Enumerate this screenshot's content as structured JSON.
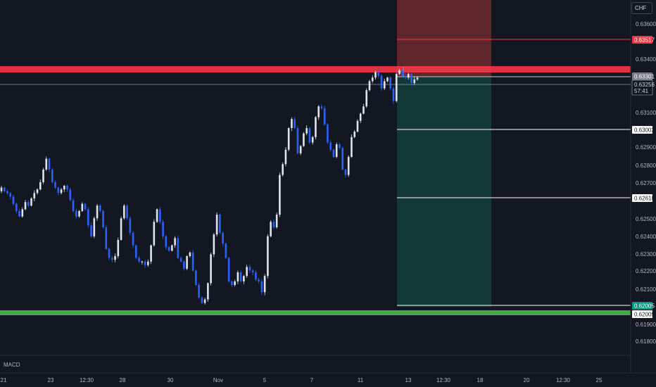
{
  "currency": "CHF",
  "indicator_label": "MACD",
  "price_labels": {
    "stop_loss": "0.63517",
    "entry": "0.63301",
    "current_price": "0.63256",
    "countdown": "57:41",
    "target_1": "0.63003",
    "target_2": "0.62618",
    "target_3": "0.62005",
    "support": "0.62005"
  },
  "colors": {
    "background": "#131722",
    "candle": "#2962ff",
    "candle_alt": "#e0e3eb",
    "resistance_zone": "#f23645",
    "support_zone": "#4caf50",
    "stop_area": "#6d2a2e",
    "target_area": "#133a3a",
    "stop_badge": "#f23645",
    "entry_badge": "#787b86",
    "target_badge": "#ffffff",
    "tp_badge": "#089981"
  },
  "chart_data": {
    "type": "candlestick",
    "y_ticks": [
      "0.63600",
      "0.63400",
      "0.63100",
      "0.62900",
      "0.62800",
      "0.62700",
      "0.62500",
      "0.62400",
      "0.62300",
      "0.62200",
      "0.62100",
      "0.61900",
      "0.61800"
    ],
    "x_ticks": [
      "21",
      "23",
      "12:30",
      "28",
      "30",
      "Nov",
      "5",
      "7",
      "11",
      "13",
      "12:30",
      "18",
      "20",
      "12:30",
      "25"
    ],
    "ylim": [
      0.6172,
      0.6369
    ],
    "resistance_zone": [
      0.63311,
      0.63354
    ],
    "support_zone": [
      0.61968,
      0.62
    ],
    "position": {
      "entry": 0.63301,
      "stop_loss": 0.63517,
      "targets": [
        0.63003,
        0.62618,
        0.62005
      ],
      "current_price": 0.63256
    },
    "close_series_approx": [
      0.6265,
      0.6263,
      0.6262,
      0.626,
      0.6256,
      0.6252,
      0.6249,
      0.6253,
      0.6257,
      0.6255,
      0.6259,
      0.6262,
      0.6264,
      0.6268,
      0.6275,
      0.6281,
      0.6275,
      0.6268,
      0.6265,
      0.6262,
      0.6264,
      0.6266,
      0.6264,
      0.6258,
      0.6252,
      0.6249,
      0.6252,
      0.6256,
      0.6253,
      0.6244,
      0.6238,
      0.6248,
      0.6255,
      0.6252,
      0.6243,
      0.6231,
      0.6226,
      0.6225,
      0.6227,
      0.6236,
      0.6248,
      0.6255,
      0.6248,
      0.624,
      0.6233,
      0.6226,
      0.6224,
      0.6224,
      0.6222,
      0.6224,
      0.6233,
      0.6246,
      0.6253,
      0.6246,
      0.6238,
      0.6232,
      0.623,
      0.6233,
      0.6237,
      0.6226,
      0.6224,
      0.622,
      0.6227,
      0.6229,
      0.6219,
      0.6211,
      0.6204,
      0.6201,
      0.6203,
      0.6212,
      0.6228,
      0.6239,
      0.625,
      0.624,
      0.6234,
      0.6226,
      0.6213,
      0.6211,
      0.6213,
      0.6218,
      0.6213,
      0.6216,
      0.6221,
      0.6219,
      0.6218,
      0.6214,
      0.6213,
      0.6207,
      0.6216,
      0.6238,
      0.6246,
      0.6243,
      0.625,
      0.6272,
      0.6278,
      0.6286,
      0.6298,
      0.6303,
      0.6298,
      0.6284,
      0.6288,
      0.6295,
      0.6298,
      0.629,
      0.6293,
      0.6304,
      0.631,
      0.6309,
      0.63,
      0.629,
      0.6286,
      0.6282,
      0.6289,
      0.6287,
      0.6275,
      0.6272,
      0.6282,
      0.6293,
      0.6296,
      0.6302,
      0.6306,
      0.631,
      0.6319,
      0.6324,
      0.6326,
      0.6329,
      0.6327,
      0.632,
      0.6324,
      0.6326,
      0.632,
      0.6313,
      0.6328,
      0.633,
      0.6327,
      0.6326,
      0.6328,
      0.6323,
      0.6325,
      0.6326
    ]
  }
}
